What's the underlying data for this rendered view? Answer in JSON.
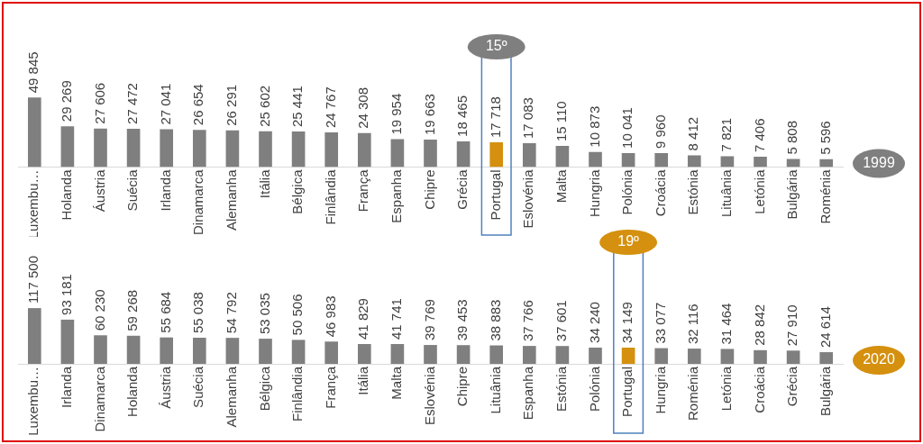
{
  "chart_data": [
    {
      "type": "bar",
      "categories": [
        "Luxembu…",
        "Holanda",
        "Áustria",
        "Suécia",
        "Irlanda",
        "Dinamarca",
        "Alemanha",
        "Itália",
        "Bélgica",
        "Finlândia",
        "França",
        "Espanha",
        "Chipre",
        "Grécia",
        "Portugal",
        "Eslovénia",
        "Malta",
        "Hungria",
        "Polónia",
        "Croácia",
        "Estónia",
        "Lituânia",
        "Letónia",
        "Bulgária",
        "Roménia"
      ],
      "values": [
        49845,
        29269,
        27606,
        27472,
        27041,
        26654,
        26291,
        25602,
        25441,
        24767,
        24308,
        19954,
        19663,
        18465,
        17718,
        17083,
        15110,
        10873,
        10041,
        9960,
        8412,
        7821,
        7406,
        5808,
        5596
      ],
      "value_labels": [
        "49 845",
        "29 269",
        "27 606",
        "27 472",
        "27 041",
        "26 654",
        "26 291",
        "25 602",
        "25 441",
        "24 767",
        "24 308",
        "19 954",
        "19 663",
        "18 465",
        "17 718",
        "17 083",
        "15 110",
        "10 873",
        "10 041",
        "9 960",
        "8 412",
        "7 821",
        "7 406",
        "5 808",
        "5 596"
      ],
      "colors": [
        "#7f7f7f",
        "#7f7f7f",
        "#7f7f7f",
        "#7f7f7f",
        "#7f7f7f",
        "#7f7f7f",
        "#7f7f7f",
        "#7f7f7f",
        "#7f7f7f",
        "#7f7f7f",
        "#7f7f7f",
        "#7f7f7f",
        "#7f7f7f",
        "#7f7f7f",
        "#d4900e",
        "#7f7f7f",
        "#7f7f7f",
        "#7f7f7f",
        "#7f7f7f",
        "#7f7f7f",
        "#7f7f7f",
        "#7f7f7f",
        "#7f7f7f",
        "#7f7f7f",
        "#7f7f7f"
      ],
      "annotations": [
        "15º",
        "1999"
      ],
      "grid": false,
      "legend": false
    },
    {
      "type": "bar",
      "categories": [
        "Luxembu…",
        "Irlanda",
        "Dinamarca",
        "Holanda",
        "Áustria",
        "Suécia",
        "Alemanha",
        "Bélgica",
        "Finlândia",
        "França",
        "Itália",
        "Malta",
        "Eslovénia",
        "Chipre",
        "Lituânia",
        "Espanha",
        "Estónia",
        "Polónia",
        "Portugal",
        "Hungria",
        "Roménia",
        "Letónia",
        "Croácia",
        "Grécia",
        "Bulgária"
      ],
      "values": [
        117500,
        93181,
        60230,
        59268,
        55684,
        55038,
        54792,
        53035,
        50506,
        46983,
        41829,
        41741,
        39769,
        39453,
        38883,
        37766,
        37601,
        34240,
        34149,
        33077,
        32116,
        31464,
        28842,
        27910,
        24614
      ],
      "value_labels": [
        "117 500",
        "93 181",
        "60 230",
        "59 268",
        "55 684",
        "55 038",
        "54 792",
        "53 035",
        "50 506",
        "46 983",
        "41 829",
        "41 741",
        "39 769",
        "39 453",
        "38 883",
        "37 766",
        "37 601",
        "34 240",
        "34 149",
        "33 077",
        "32 116",
        "31 464",
        "28 842",
        "27 910",
        "24 614"
      ],
      "colors": [
        "#7f7f7f",
        "#7f7f7f",
        "#7f7f7f",
        "#7f7f7f",
        "#7f7f7f",
        "#7f7f7f",
        "#7f7f7f",
        "#7f7f7f",
        "#7f7f7f",
        "#7f7f7f",
        "#7f7f7f",
        "#7f7f7f",
        "#7f7f7f",
        "#7f7f7f",
        "#7f7f7f",
        "#7f7f7f",
        "#7f7f7f",
        "#7f7f7f",
        "#d4900e",
        "#7f7f7f",
        "#7f7f7f",
        "#7f7f7f",
        "#7f7f7f",
        "#7f7f7f",
        "#7f7f7f"
      ],
      "annotations": [
        "19º",
        "2020"
      ],
      "grid": false,
      "legend": false
    }
  ]
}
